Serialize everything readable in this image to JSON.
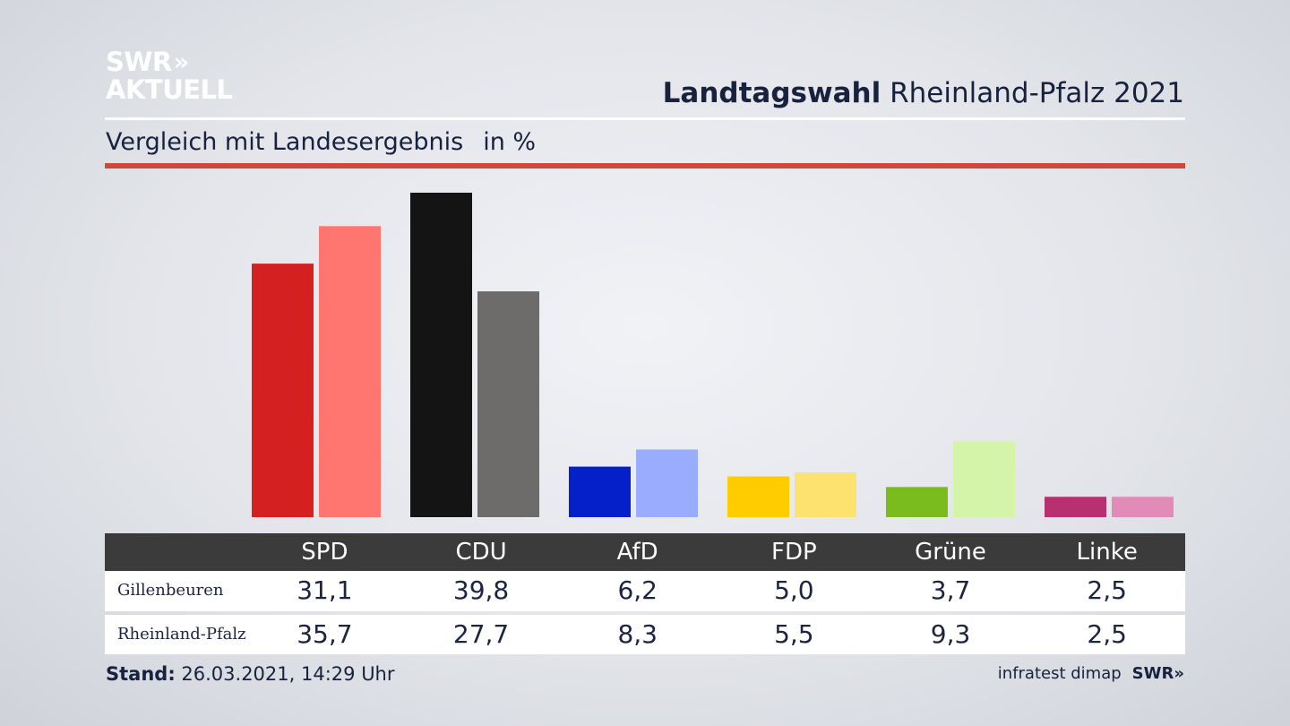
{
  "logo": {
    "line1": "SWR",
    "chevrons": "»",
    "line2": "AKTUELL"
  },
  "title": {
    "bold": "Landtagswahl",
    "rest": "Rheinland-Pfalz 2021"
  },
  "subtitle": {
    "text": "Vergleich mit Landesergebnis",
    "unit": "in %"
  },
  "table": {
    "header_label": "",
    "rows": [
      {
        "label": "Gillenbeuren",
        "values": [
          "31,1",
          "39,8",
          "6,2",
          "5,0",
          "3,7",
          "2,5"
        ]
      },
      {
        "label": "Rheinland-Pfalz",
        "values": [
          "35,7",
          "27,7",
          "8,3",
          "5,5",
          "9,3",
          "2,5"
        ]
      }
    ]
  },
  "chart_data": {
    "type": "bar",
    "title": "",
    "xlabel": "",
    "ylabel": "",
    "categories": [
      "SPD",
      "CDU",
      "AfD",
      "FDP",
      "Grüne",
      "Linke"
    ],
    "series": [
      {
        "name": "Gillenbeuren",
        "values": [
          31.1,
          39.8,
          6.2,
          5.0,
          3.7,
          2.5
        ],
        "colors": [
          "#d42020",
          "#141414",
          "#0520c8",
          "#ffcc00",
          "#7abb1e",
          "#b8306f"
        ]
      },
      {
        "name": "Rheinland-Pfalz",
        "values": [
          35.7,
          27.7,
          8.3,
          5.5,
          9.3,
          2.5
        ],
        "colors": [
          "#ff7570",
          "#6e6c6b",
          "#9aacfe",
          "#fde270",
          "#d4f5a9",
          "#e28bb8"
        ]
      }
    ],
    "ylim": [
      0,
      40
    ],
    "grid": false,
    "legend": "none"
  },
  "footer": {
    "stand_label": "Stand:",
    "stand_value": "26.03.2021, 14:29 Uhr",
    "credit": "infratest dimap",
    "credit_logo": "SWR",
    "credit_chevrons": "»"
  },
  "icons": {
    "logo_chevron": "double-chevron-right-icon"
  }
}
